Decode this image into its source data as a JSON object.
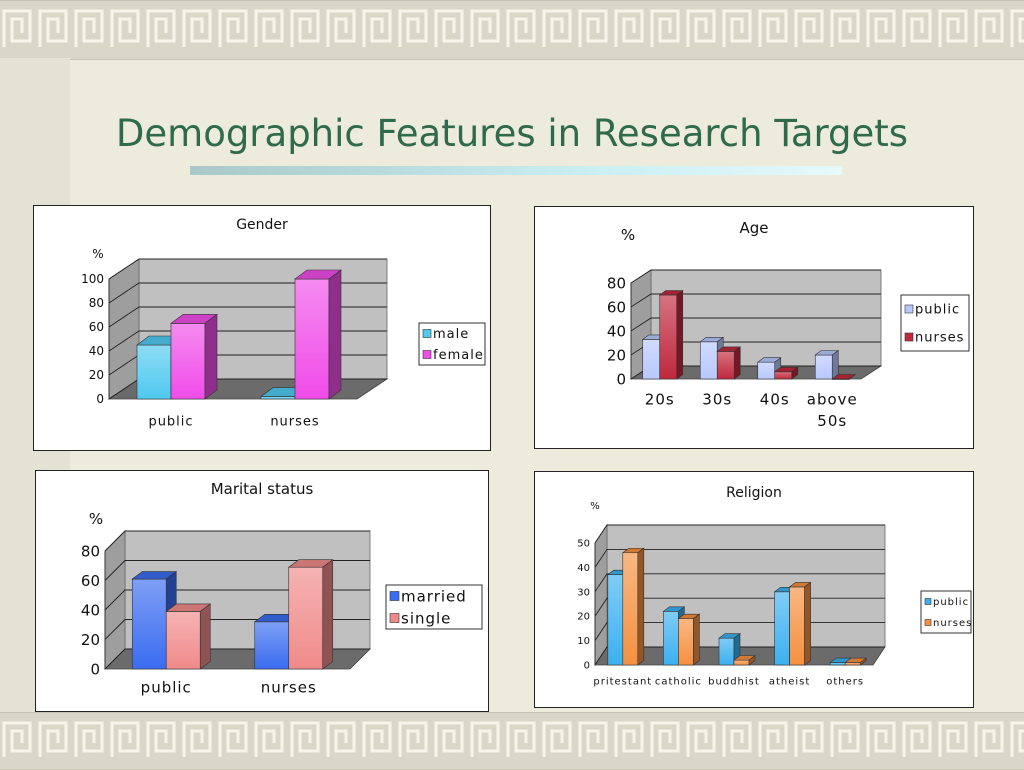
{
  "slide": {
    "title": "Demographic Features in Research Targets"
  },
  "chart_data": [
    {
      "type": "bar",
      "title": "Gender",
      "unit_label": "%",
      "categories": [
        "public",
        "nurses"
      ],
      "series": [
        {
          "name": "male",
          "values": [
            45,
            2
          ]
        },
        {
          "name": "female",
          "values": [
            63,
            100
          ]
        }
      ],
      "yticks": [
        "0",
        "20",
        "40",
        "60",
        "80",
        "100"
      ],
      "ylim": [
        0,
        100
      ],
      "legend": "right",
      "colors": [
        "#4fc9f0",
        "#f04ce8"
      ],
      "grid": true
    },
    {
      "type": "bar",
      "title": "Age",
      "unit_label": "%",
      "categories": [
        "20s",
        "30s",
        "40s",
        "above 50s"
      ],
      "series": [
        {
          "name": "public",
          "values": [
            33,
            31,
            14,
            20
          ]
        },
        {
          "name": "nurses",
          "values": [
            70,
            23,
            6,
            0
          ]
        }
      ],
      "yticks": [
        "0",
        "20",
        "40",
        "60",
        "80"
      ],
      "ylim": [
        0,
        80
      ],
      "legend": "right",
      "colors": [
        "#b8c8ff",
        "#c0283c"
      ],
      "grid": true
    },
    {
      "type": "bar",
      "title": "Marital status",
      "unit_label": "%",
      "categories": [
        "public",
        "nurses"
      ],
      "series": [
        {
          "name": "married",
          "values": [
            61,
            32
          ]
        },
        {
          "name": "single",
          "values": [
            39,
            69
          ]
        }
      ],
      "yticks": [
        "0",
        "20",
        "40",
        "60",
        "80"
      ],
      "ylim": [
        0,
        80
      ],
      "legend": "right",
      "colors": [
        "#3a6cf0",
        "#f08a8a"
      ],
      "grid": true
    },
    {
      "type": "bar",
      "title": "Religion",
      "unit_label": "%",
      "categories": [
        "pritestant",
        "catholic",
        "buddhist",
        "atheist",
        "others"
      ],
      "series": [
        {
          "name": "public",
          "values": [
            37,
            22,
            11,
            30,
            1
          ]
        },
        {
          "name": "nurses",
          "values": [
            46,
            19,
            2,
            32,
            1
          ]
        }
      ],
      "yticks": [
        "0",
        "10",
        "20",
        "30",
        "40",
        "50"
      ],
      "ylim": [
        0,
        50
      ],
      "legend": "right",
      "colors": [
        "#3bb0f0",
        "#f59040"
      ],
      "grid": true
    }
  ]
}
